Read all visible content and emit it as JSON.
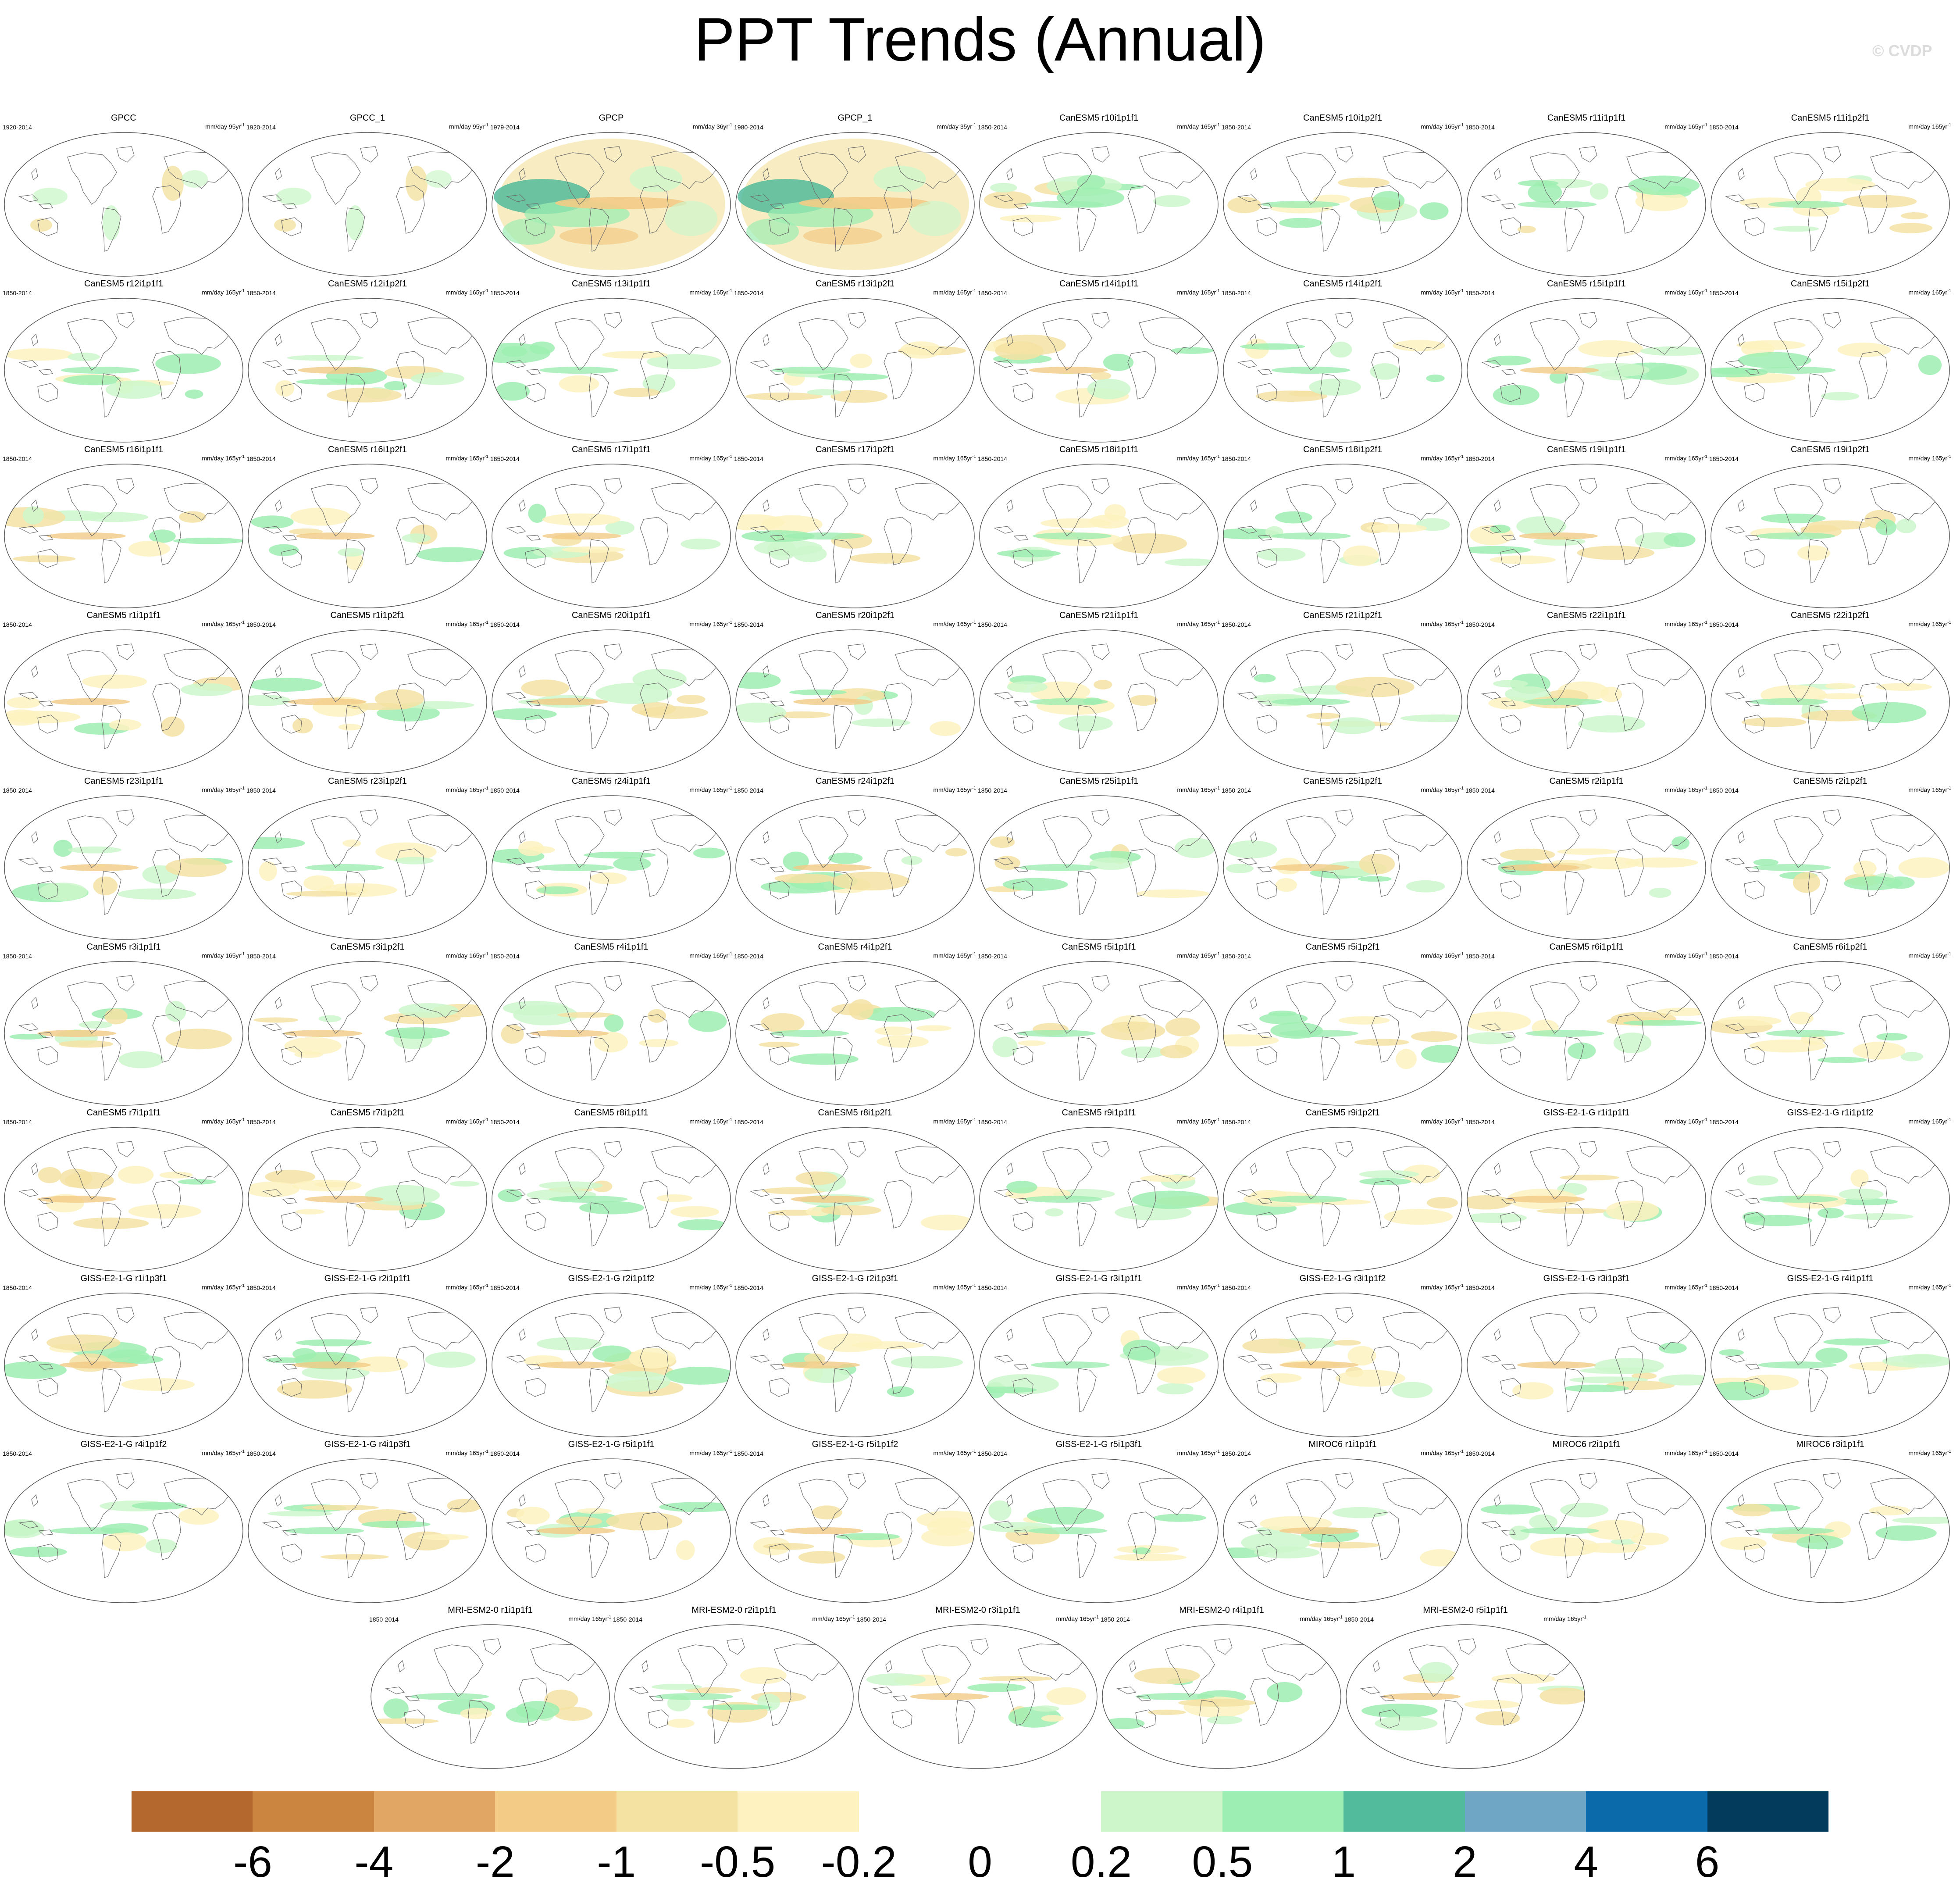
{
  "title": "PPT Trends (Annual)",
  "watermark": "© CVDP",
  "units_prefix": "mm/day",
  "panels": [
    {
      "title": "GPCC",
      "years": "1920-2014",
      "units_suffix": "95yr",
      "kind": "obs"
    },
    {
      "title": "GPCC_1",
      "years": "1920-2014",
      "units_suffix": "95yr",
      "kind": "obs"
    },
    {
      "title": "GPCP",
      "years": "1979-2014",
      "units_suffix": "36yr",
      "kind": "gpcp"
    },
    {
      "title": "GPCP_1",
      "years": "1980-2014",
      "units_suffix": "35yr",
      "kind": "gpcp"
    },
    {
      "title": "CanESM5 r10i1p1f1",
      "years": "1850-2014",
      "units_suffix": "165yr",
      "kind": "model"
    },
    {
      "title": "CanESM5 r10i1p2f1",
      "years": "1850-2014",
      "units_suffix": "165yr",
      "kind": "model"
    },
    {
      "title": "CanESM5 r11i1p1f1",
      "years": "1850-2014",
      "units_suffix": "165yr",
      "kind": "model"
    },
    {
      "title": "CanESM5 r11i1p2f1",
      "years": "1850-2014",
      "units_suffix": "165yr",
      "kind": "model"
    },
    {
      "title": "CanESM5 r12i1p1f1",
      "years": "1850-2014",
      "units_suffix": "165yr",
      "kind": "model"
    },
    {
      "title": "CanESM5 r12i1p2f1",
      "years": "1850-2014",
      "units_suffix": "165yr",
      "kind": "model"
    },
    {
      "title": "CanESM5 r13i1p1f1",
      "years": "1850-2014",
      "units_suffix": "165yr",
      "kind": "model"
    },
    {
      "title": "CanESM5 r13i1p2f1",
      "years": "1850-2014",
      "units_suffix": "165yr",
      "kind": "model"
    },
    {
      "title": "CanESM5 r14i1p1f1",
      "years": "1850-2014",
      "units_suffix": "165yr",
      "kind": "model"
    },
    {
      "title": "CanESM5 r14i1p2f1",
      "years": "1850-2014",
      "units_suffix": "165yr",
      "kind": "model"
    },
    {
      "title": "CanESM5 r15i1p1f1",
      "years": "1850-2014",
      "units_suffix": "165yr",
      "kind": "model"
    },
    {
      "title": "CanESM5 r15i1p2f1",
      "years": "1850-2014",
      "units_suffix": "165yr",
      "kind": "model"
    },
    {
      "title": "CanESM5 r16i1p1f1",
      "years": "1850-2014",
      "units_suffix": "165yr",
      "kind": "model"
    },
    {
      "title": "CanESM5 r16i1p2f1",
      "years": "1850-2014",
      "units_suffix": "165yr",
      "kind": "model"
    },
    {
      "title": "CanESM5 r17i1p1f1",
      "years": "1850-2014",
      "units_suffix": "165yr",
      "kind": "model"
    },
    {
      "title": "CanESM5 r17i1p2f1",
      "years": "1850-2014",
      "units_suffix": "165yr",
      "kind": "model"
    },
    {
      "title": "CanESM5 r18i1p1f1",
      "years": "1850-2014",
      "units_suffix": "165yr",
      "kind": "model"
    },
    {
      "title": "CanESM5 r18i1p2f1",
      "years": "1850-2014",
      "units_suffix": "165yr",
      "kind": "model"
    },
    {
      "title": "CanESM5 r19i1p1f1",
      "years": "1850-2014",
      "units_suffix": "165yr",
      "kind": "model"
    },
    {
      "title": "CanESM5 r19i1p2f1",
      "years": "1850-2014",
      "units_suffix": "165yr",
      "kind": "model"
    },
    {
      "title": "CanESM5 r1i1p1f1",
      "years": "1850-2014",
      "units_suffix": "165yr",
      "kind": "model"
    },
    {
      "title": "CanESM5 r1i1p2f1",
      "years": "1850-2014",
      "units_suffix": "165yr",
      "kind": "model"
    },
    {
      "title": "CanESM5 r20i1p1f1",
      "years": "1850-2014",
      "units_suffix": "165yr",
      "kind": "model"
    },
    {
      "title": "CanESM5 r20i1p2f1",
      "years": "1850-2014",
      "units_suffix": "165yr",
      "kind": "model"
    },
    {
      "title": "CanESM5 r21i1p1f1",
      "years": "1850-2014",
      "units_suffix": "165yr",
      "kind": "model"
    },
    {
      "title": "CanESM5 r21i1p2f1",
      "years": "1850-2014",
      "units_suffix": "165yr",
      "kind": "model"
    },
    {
      "title": "CanESM5 r22i1p1f1",
      "years": "1850-2014",
      "units_suffix": "165yr",
      "kind": "model"
    },
    {
      "title": "CanESM5 r22i1p2f1",
      "years": "1850-2014",
      "units_suffix": "165yr",
      "kind": "model"
    },
    {
      "title": "CanESM5 r23i1p1f1",
      "years": "1850-2014",
      "units_suffix": "165yr",
      "kind": "model"
    },
    {
      "title": "CanESM5 r23i1p2f1",
      "years": "1850-2014",
      "units_suffix": "165yr",
      "kind": "model"
    },
    {
      "title": "CanESM5 r24i1p1f1",
      "years": "1850-2014",
      "units_suffix": "165yr",
      "kind": "model"
    },
    {
      "title": "CanESM5 r24i1p2f1",
      "years": "1850-2014",
      "units_suffix": "165yr",
      "kind": "model"
    },
    {
      "title": "CanESM5 r25i1p1f1",
      "years": "1850-2014",
      "units_suffix": "165yr",
      "kind": "model"
    },
    {
      "title": "CanESM5 r25i1p2f1",
      "years": "1850-2014",
      "units_suffix": "165yr",
      "kind": "model"
    },
    {
      "title": "CanESM5 r2i1p1f1",
      "years": "1850-2014",
      "units_suffix": "165yr",
      "kind": "model"
    },
    {
      "title": "CanESM5 r2i1p2f1",
      "years": "1850-2014",
      "units_suffix": "165yr",
      "kind": "model"
    },
    {
      "title": "CanESM5 r3i1p1f1",
      "years": "1850-2014",
      "units_suffix": "165yr",
      "kind": "model"
    },
    {
      "title": "CanESM5 r3i1p2f1",
      "years": "1850-2014",
      "units_suffix": "165yr",
      "kind": "model"
    },
    {
      "title": "CanESM5 r4i1p1f1",
      "years": "1850-2014",
      "units_suffix": "165yr",
      "kind": "model"
    },
    {
      "title": "CanESM5 r4i1p2f1",
      "years": "1850-2014",
      "units_suffix": "165yr",
      "kind": "model"
    },
    {
      "title": "CanESM5 r5i1p1f1",
      "years": "1850-2014",
      "units_suffix": "165yr",
      "kind": "model"
    },
    {
      "title": "CanESM5 r5i1p2f1",
      "years": "1850-2014",
      "units_suffix": "165yr",
      "kind": "model"
    },
    {
      "title": "CanESM5 r6i1p1f1",
      "years": "1850-2014",
      "units_suffix": "165yr",
      "kind": "model"
    },
    {
      "title": "CanESM5 r6i1p2f1",
      "years": "1850-2014",
      "units_suffix": "165yr",
      "kind": "model"
    },
    {
      "title": "CanESM5 r7i1p1f1",
      "years": "1850-2014",
      "units_suffix": "165yr",
      "kind": "model"
    },
    {
      "title": "CanESM5 r7i1p2f1",
      "years": "1850-2014",
      "units_suffix": "165yr",
      "kind": "model"
    },
    {
      "title": "CanESM5 r8i1p1f1",
      "years": "1850-2014",
      "units_suffix": "165yr",
      "kind": "model"
    },
    {
      "title": "CanESM5 r8i1p2f1",
      "years": "1850-2014",
      "units_suffix": "165yr",
      "kind": "model"
    },
    {
      "title": "CanESM5 r9i1p1f1",
      "years": "1850-2014",
      "units_suffix": "165yr",
      "kind": "model"
    },
    {
      "title": "CanESM5 r9i1p2f1",
      "years": "1850-2014",
      "units_suffix": "165yr",
      "kind": "model"
    },
    {
      "title": "GISS-E2-1-G r1i1p1f1",
      "years": "1850-2014",
      "units_suffix": "165yr",
      "kind": "model"
    },
    {
      "title": "GISS-E2-1-G r1i1p1f2",
      "years": "1850-2014",
      "units_suffix": "165yr",
      "kind": "model"
    },
    {
      "title": "GISS-E2-1-G r1i1p3f1",
      "years": "1850-2014",
      "units_suffix": "165yr",
      "kind": "model"
    },
    {
      "title": "GISS-E2-1-G r2i1p1f1",
      "years": "1850-2014",
      "units_suffix": "165yr",
      "kind": "model"
    },
    {
      "title": "GISS-E2-1-G r2i1p1f2",
      "years": "1850-2014",
      "units_suffix": "165yr",
      "kind": "model"
    },
    {
      "title": "GISS-E2-1-G r2i1p3f1",
      "years": "1850-2014",
      "units_suffix": "165yr",
      "kind": "model"
    },
    {
      "title": "GISS-E2-1-G r3i1p1f1",
      "years": "1850-2014",
      "units_suffix": "165yr",
      "kind": "model"
    },
    {
      "title": "GISS-E2-1-G r3i1p1f2",
      "years": "1850-2014",
      "units_suffix": "165yr",
      "kind": "model"
    },
    {
      "title": "GISS-E2-1-G r3i1p3f1",
      "years": "1850-2014",
      "units_suffix": "165yr",
      "kind": "model"
    },
    {
      "title": "GISS-E2-1-G r4i1p1f1",
      "years": "1850-2014",
      "units_suffix": "165yr",
      "kind": "model"
    },
    {
      "title": "GISS-E2-1-G r4i1p1f2",
      "years": "1850-2014",
      "units_suffix": "165yr",
      "kind": "model"
    },
    {
      "title": "GISS-E2-1-G r4i1p3f1",
      "years": "1850-2014",
      "units_suffix": "165yr",
      "kind": "model"
    },
    {
      "title": "GISS-E2-1-G r5i1p1f1",
      "years": "1850-2014",
      "units_suffix": "165yr",
      "kind": "model"
    },
    {
      "title": "GISS-E2-1-G r5i1p1f2",
      "years": "1850-2014",
      "units_suffix": "165yr",
      "kind": "model"
    },
    {
      "title": "GISS-E2-1-G r5i1p3f1",
      "years": "1850-2014",
      "units_suffix": "165yr",
      "kind": "model"
    },
    {
      "title": "MIROC6 r1i1p1f1",
      "years": "1850-2014",
      "units_suffix": "165yr",
      "kind": "model"
    },
    {
      "title": "MIROC6 r2i1p1f1",
      "years": "1850-2014",
      "units_suffix": "165yr",
      "kind": "model"
    },
    {
      "title": "MIROC6 r3i1p1f1",
      "years": "1850-2014",
      "units_suffix": "165yr",
      "kind": "model"
    },
    {
      "title": "MRI-ESM2-0 r1i1p1f1",
      "years": "1850-2014",
      "units_suffix": "165yr",
      "kind": "model"
    },
    {
      "title": "MRI-ESM2-0 r2i1p1f1",
      "years": "1850-2014",
      "units_suffix": "165yr",
      "kind": "model"
    },
    {
      "title": "MRI-ESM2-0 r3i1p1f1",
      "years": "1850-2014",
      "units_suffix": "165yr",
      "kind": "model"
    },
    {
      "title": "MRI-ESM2-0 r4i1p1f1",
      "years": "1850-2014",
      "units_suffix": "165yr",
      "kind": "model"
    },
    {
      "title": "MRI-ESM2-0 r5i1p1f1",
      "years": "1850-2014",
      "units_suffix": "165yr",
      "kind": "model"
    }
  ],
  "colorbar": {
    "colors": [
      "#b5682d",
      "#cc8441",
      "#e2a664",
      "#f3cb86",
      "#f4e2a3",
      "#fdf2c0",
      "#ffffff",
      "#ffffff",
      "#cdf7cb",
      "#9deeb2",
      "#52bb9b",
      "#6fa6c6",
      "#0b6aa9",
      "#023b5c"
    ],
    "labels": [
      "-6",
      "-4",
      "-2",
      "-1",
      "-0.5",
      "-0.2",
      "0",
      "0.2",
      "0.5",
      "1",
      "2",
      "4",
      "6"
    ]
  }
}
